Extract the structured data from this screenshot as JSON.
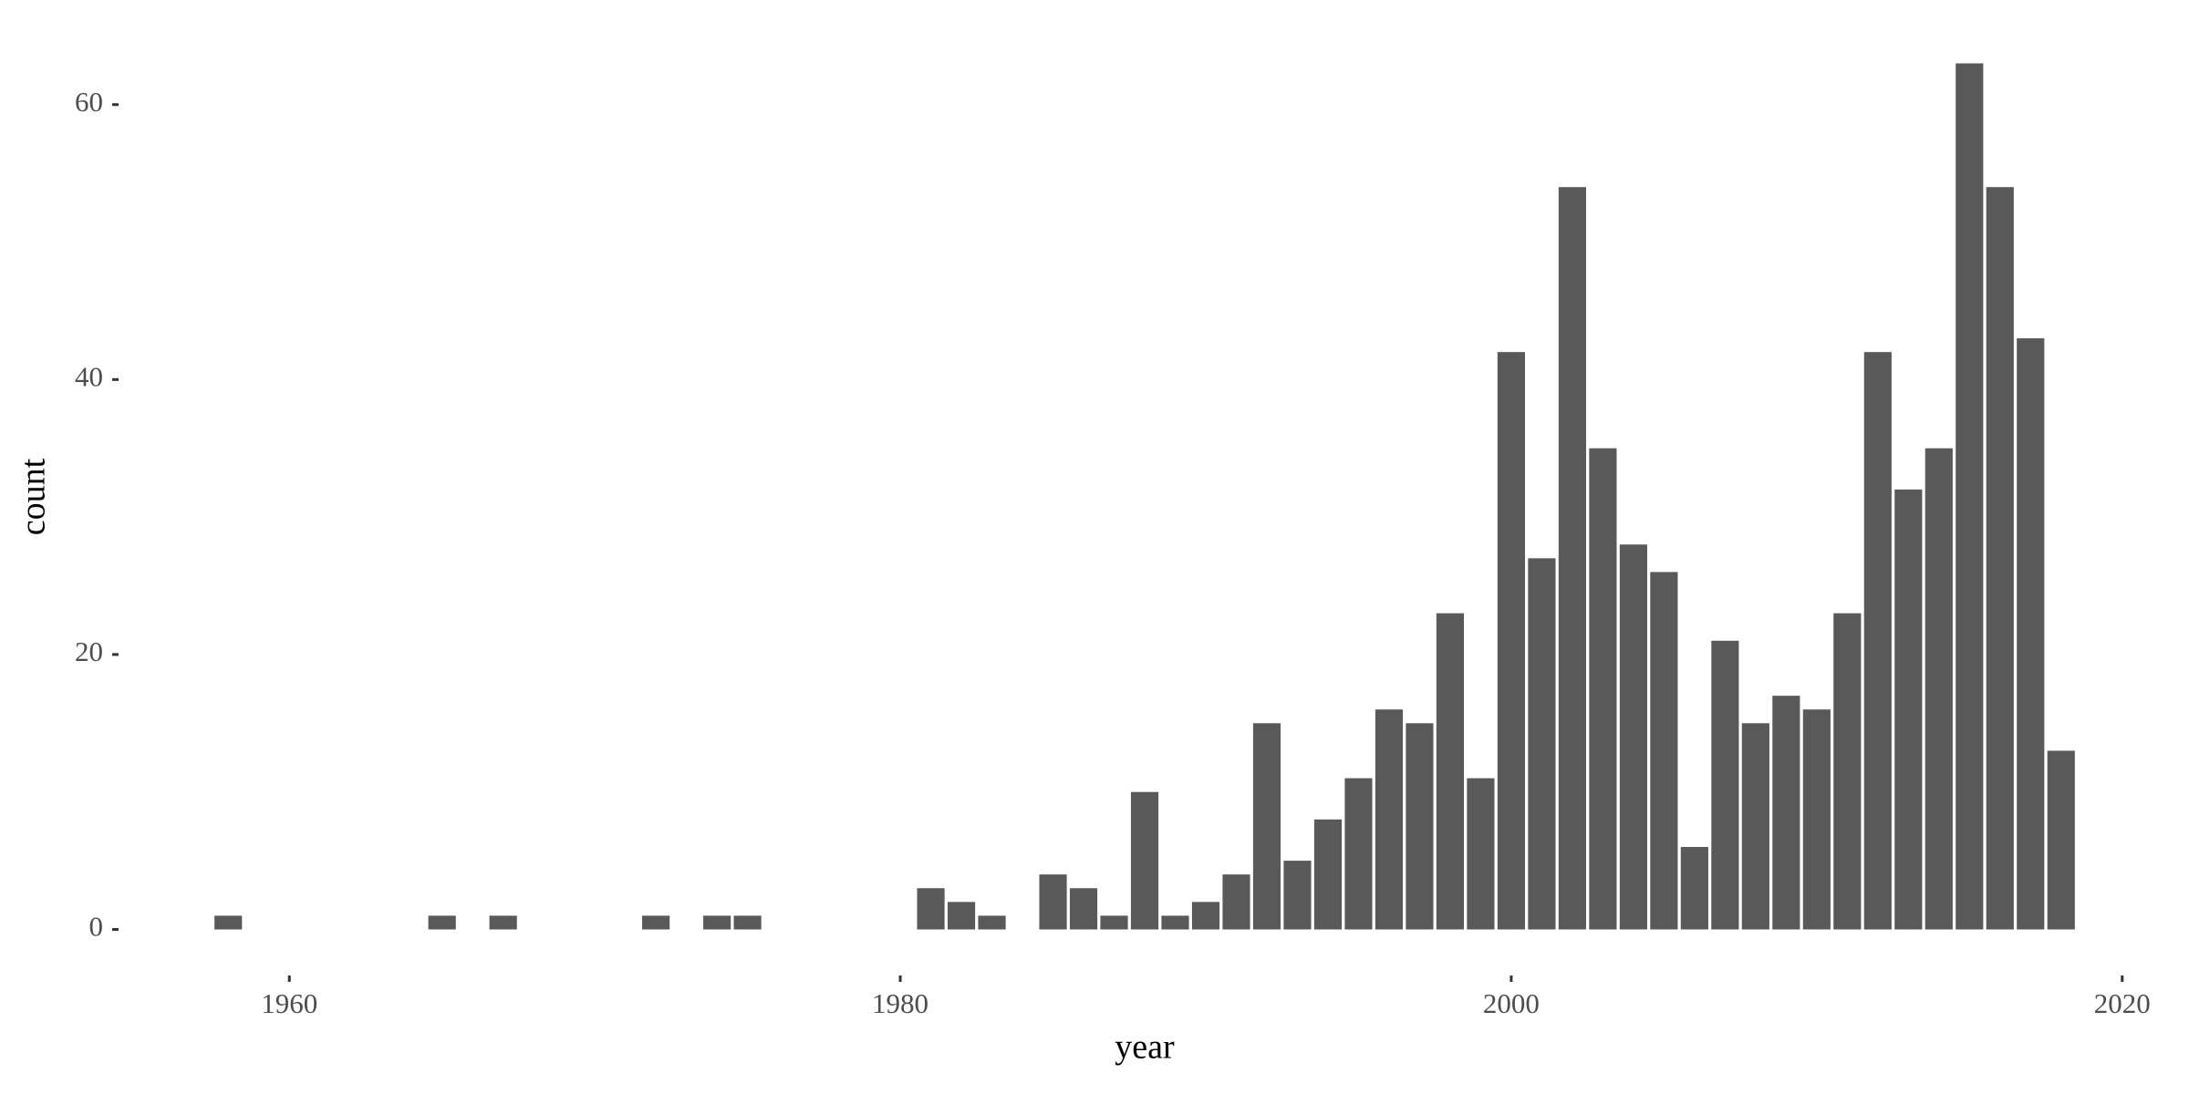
{
  "chart_data": {
    "type": "bar",
    "x_label": "year",
    "y_label": "count",
    "x": [
      1958,
      1965,
      1967,
      1972,
      1974,
      1975,
      1981,
      1982,
      1983,
      1985,
      1986,
      1987,
      1988,
      1989,
      1990,
      1991,
      1992,
      1993,
      1994,
      1995,
      1996,
      1997,
      1998,
      1999,
      2000,
      2001,
      2002,
      2003,
      2004,
      2005,
      2006,
      2007,
      2008,
      2009,
      2010,
      2011,
      2012,
      2013,
      2014,
      2015,
      2016,
      2017,
      2018
    ],
    "values": [
      1,
      1,
      1,
      1,
      1,
      1,
      3,
      2,
      1,
      4,
      3,
      1,
      10,
      1,
      2,
      4,
      15,
      5,
      8,
      11,
      16,
      15,
      23,
      11,
      42,
      27,
      54,
      35,
      28,
      26,
      6,
      21,
      15,
      17,
      16,
      23,
      42,
      32,
      35,
      63,
      54,
      43,
      13
    ],
    "color": "#595959",
    "xlim": [
      1954.5,
      2021.5
    ],
    "xticks": [
      1960,
      1980,
      2000,
      2020
    ],
    "ylim": [
      -3.15,
      66.15
    ],
    "yticks": [
      0,
      20,
      40,
      60
    ]
  }
}
